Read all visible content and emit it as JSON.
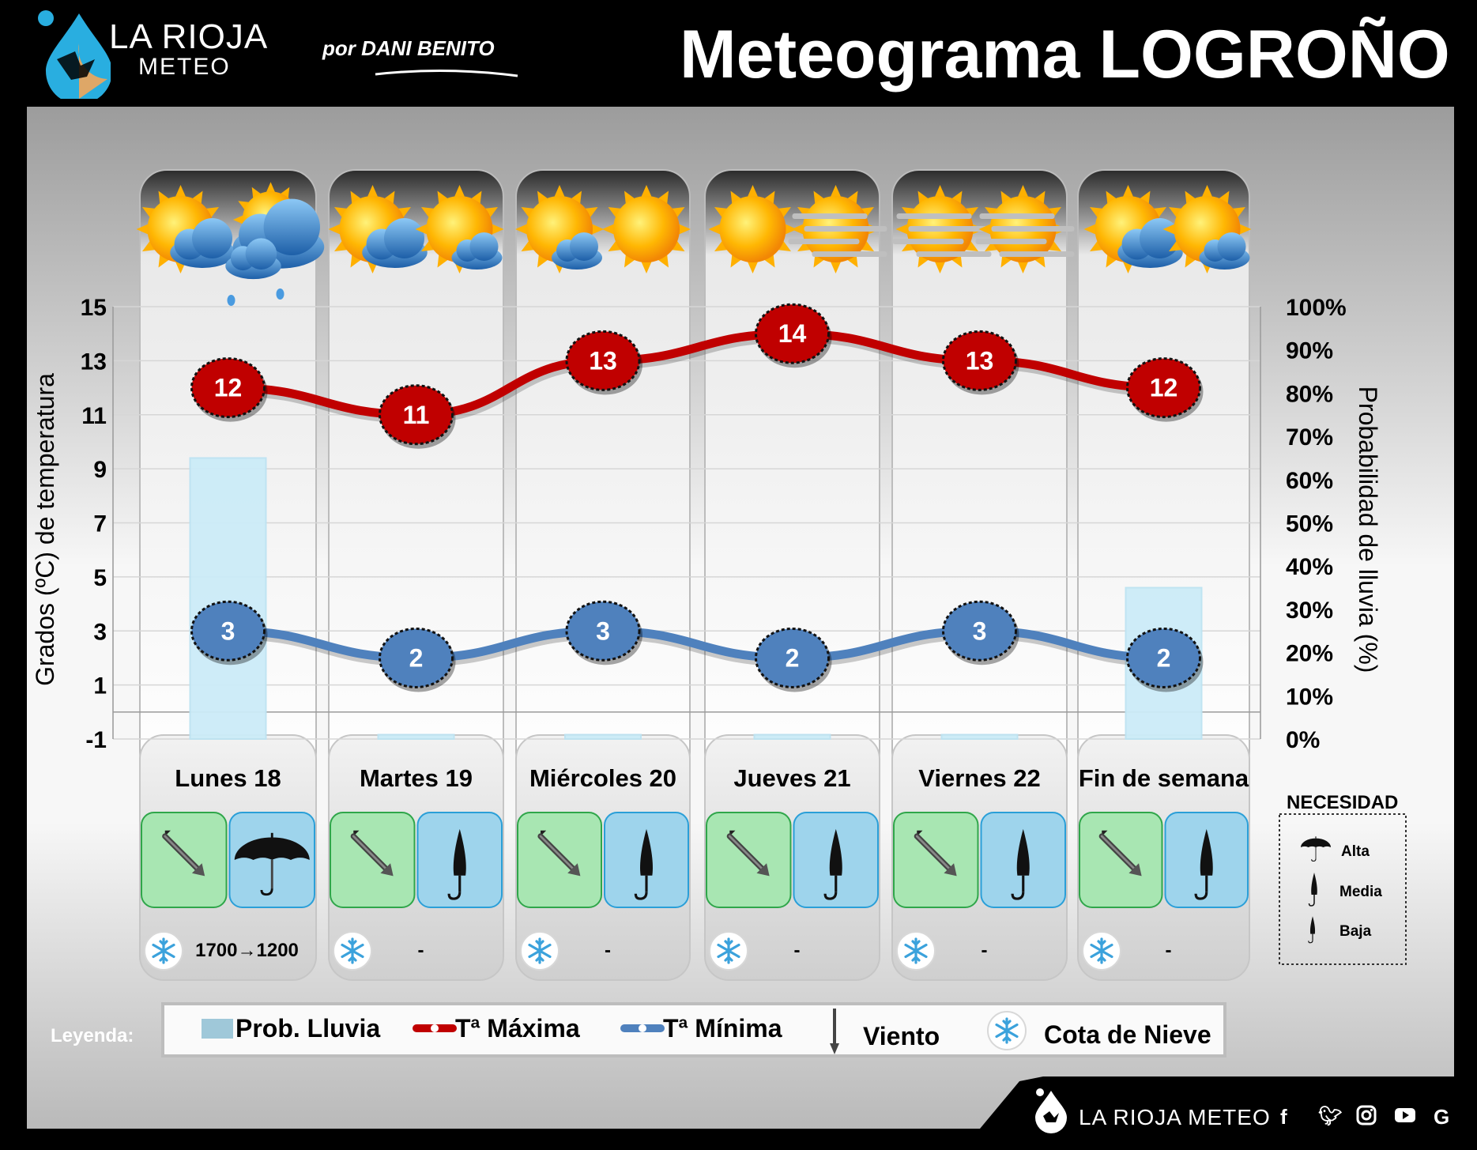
{
  "header": {
    "brand_title": "LA RIOJA",
    "brand_sub": "METEO",
    "author": "por DANI BENITO",
    "title": "Meteograma LOGROÑO"
  },
  "chart_data": {
    "type": "line",
    "categories": [
      "Lunes 18",
      "Martes 19",
      "Miércoles 20",
      "Jueves 21",
      "Viernes 22",
      "Fin de semana"
    ],
    "series": [
      {
        "name": "Tª Máxima",
        "values": [
          12,
          11,
          13,
          14,
          13,
          12
        ],
        "color": "#c00000"
      },
      {
        "name": "Tª Mínima",
        "values": [
          3,
          2,
          3,
          2,
          3,
          2
        ],
        "color": "#4f81bd"
      },
      {
        "name": "Prob. Lluvia",
        "type": "bar",
        "values": [
          65,
          1,
          1,
          1,
          1,
          35
        ],
        "axis": "right",
        "color": "#ccecf8"
      }
    ],
    "ylabel": "Grados (ºC) de temperatura",
    "y2label": "Probabilidad de lluvia (%)",
    "ylim": [
      -1,
      15
    ],
    "y2lim": [
      0,
      100
    ],
    "yticks": [
      "15",
      "13",
      "11",
      "9",
      "7",
      "5",
      "3",
      "1",
      "-1"
    ],
    "y2ticks": [
      "100%",
      "90%",
      "80%",
      "70%",
      "60%",
      "50%",
      "40%",
      "30%",
      "20%",
      "10%",
      "0%"
    ],
    "grid": true,
    "legend": {
      "title": "Leyenda:",
      "items": [
        "Prob. Lluvia",
        "Tª Máxima",
        "Tª Mínima",
        "Viento",
        "Cota de Nieve"
      ],
      "position": "bottom"
    }
  },
  "days": [
    {
      "label": "Lunes 18",
      "sky": [
        "sun-cloud",
        "cloud-rain"
      ],
      "wind": "SE",
      "umbrella": "alta",
      "snow": "1700→1200"
    },
    {
      "label": "Martes 19",
      "sky": [
        "sun-cloud",
        "sun-cloud-small"
      ],
      "wind": "SE",
      "umbrella": "media",
      "snow": "-"
    },
    {
      "label": "Miércoles 20",
      "sky": [
        "sun-cloud-small",
        "sun"
      ],
      "wind": "SE",
      "umbrella": "media",
      "snow": "-"
    },
    {
      "label": "Jueves 21",
      "sky": [
        "sun",
        "sun-fog"
      ],
      "wind": "SE",
      "umbrella": "media",
      "snow": "-"
    },
    {
      "label": "Viernes 22",
      "sky": [
        "sun-fog",
        "sun-fog"
      ],
      "wind": "SE",
      "umbrella": "media",
      "snow": "-"
    },
    {
      "label": "Fin de semana",
      "sky": [
        "sun-cloud",
        "sun-cloud-small"
      ],
      "wind": "SE",
      "umbrella": "media",
      "snow": "-"
    }
  ],
  "need_box": {
    "title": "NECESIDAD",
    "items": [
      "Alta",
      "Media",
      "Baja"
    ]
  },
  "footer": {
    "brand": "LA RIOJA METEO",
    "social_icons": [
      "facebook-icon",
      "twitter-icon",
      "instagram-icon",
      "youtube-icon",
      "google-icon"
    ]
  }
}
